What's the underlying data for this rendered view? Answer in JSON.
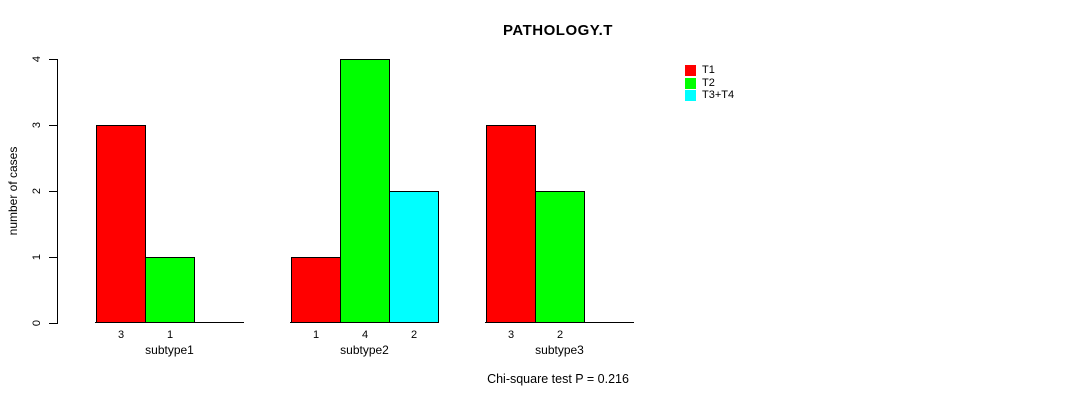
{
  "chart_data": {
    "type": "bar",
    "title": "PATHOLOGY.T",
    "ylabel": "number of cases",
    "xlabel": "",
    "ylim": [
      0,
      4
    ],
    "yticks": [
      0,
      1,
      2,
      3,
      4
    ],
    "categories": [
      "subtype1",
      "subtype2",
      "subtype3"
    ],
    "series": [
      {
        "name": "T1",
        "color": "#ff0000",
        "values": [
          3,
          1,
          3
        ]
      },
      {
        "name": "T2",
        "color": "#00ff00",
        "values": [
          1,
          4,
          2
        ]
      },
      {
        "name": "T3+T4",
        "color": "#00ffff",
        "values": [
          0,
          2,
          0
        ]
      }
    ],
    "bar_value_labels_rule": "value shown under each bar, zero values unlabeled",
    "legend_position": "right",
    "grid": false,
    "annotation": "Chi-square test P = 0.216"
  }
}
